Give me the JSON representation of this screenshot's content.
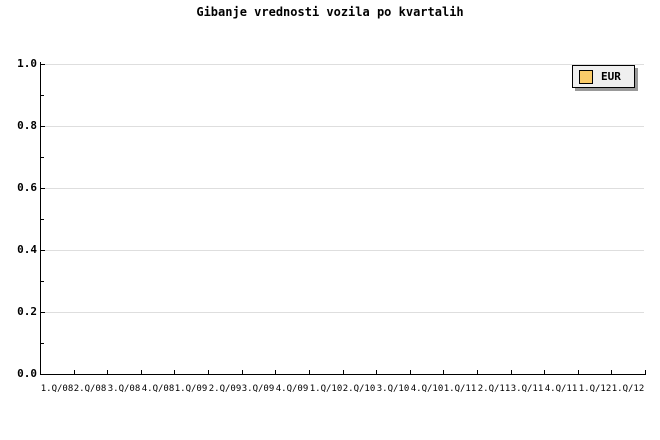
{
  "title": "Gibanje vrednosti vozila po kvartalih",
  "legend": {
    "position": "top-right",
    "items": [
      {
        "label": "EUR",
        "swatch_color": "#facb69"
      }
    ]
  },
  "chart_data": {
    "type": "line",
    "title": "Gibanje vrednosti vozila po kvartalih",
    "categories": [
      "1.Q/08",
      "2.Q/08",
      "3.Q/08",
      "4.Q/08",
      "1.Q/09",
      "2.Q/09",
      "3.Q/09",
      "4.Q/09",
      "1.Q/10",
      "2.Q/10",
      "3.Q/10",
      "4.Q/10",
      "1.Q/11",
      "2.Q/11",
      "3.Q/11",
      "4.Q/11",
      "1.Q/12",
      "1.Q/12"
    ],
    "series": [
      {
        "name": "EUR",
        "color": "#facb69",
        "values": []
      }
    ],
    "ylim": [
      0.0,
      1.0
    ],
    "y_major_ticks": [
      0.0,
      0.2,
      0.4,
      0.6,
      0.8,
      1.0
    ],
    "y_tick_labels": [
      "0.0",
      "0.2",
      "0.4",
      "0.6",
      "0.8",
      "1.0"
    ],
    "y_minor_ticks": [
      0.1,
      0.3,
      0.5,
      0.7,
      0.9
    ],
    "grid": "horizontal-major",
    "legend_position": "top-right"
  },
  "colors": {
    "background": "#ffffff",
    "text": "#000000",
    "axis": "#000000",
    "gridline": "#dedede",
    "legend_background": "#efefef",
    "legend_border": "#000000",
    "legend_shadow": "#999999",
    "series_eur": "#facb69"
  }
}
